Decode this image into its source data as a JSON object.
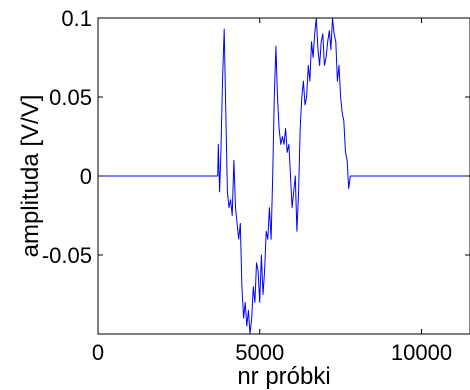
{
  "chart_data": {
    "type": "line",
    "title": "",
    "xlabel": "nr próbki",
    "ylabel": "amplituda [V/V]",
    "xlim": [
      0,
      11500
    ],
    "ylim": [
      -0.1,
      0.1
    ],
    "xticks": [
      0,
      5000,
      10000
    ],
    "xtick_labels": [
      "0",
      "5000",
      "10000"
    ],
    "yticks": [
      0.1,
      0.05,
      0,
      -0.05
    ],
    "ytick_labels": [
      "0.1",
      "0.05",
      "0",
      "-0.05"
    ],
    "grid": false,
    "series": [
      {
        "color": "#0000ff",
        "points": [
          [
            0,
            0
          ],
          [
            3700,
            0
          ],
          [
            3720,
            0.02
          ],
          [
            3760,
            -0.01
          ],
          [
            3800,
            0.015
          ],
          [
            3850,
            0.06
          ],
          [
            3900,
            0.093
          ],
          [
            3950,
            0.04
          ],
          [
            4000,
            -0.01
          ],
          [
            4050,
            -0.02
          ],
          [
            4100,
            -0.015
          ],
          [
            4150,
            -0.025
          ],
          [
            4200,
            0.01
          ],
          [
            4250,
            -0.02
          ],
          [
            4300,
            -0.03
          ],
          [
            4350,
            -0.04
          ],
          [
            4400,
            -0.03
          ],
          [
            4450,
            -0.07
          ],
          [
            4500,
            -0.09
          ],
          [
            4550,
            -0.08
          ],
          [
            4600,
            -0.095
          ],
          [
            4650,
            -0.085
          ],
          [
            4700,
            -0.1
          ],
          [
            4750,
            -0.09
          ],
          [
            4800,
            -0.07
          ],
          [
            4850,
            -0.08
          ],
          [
            4900,
            -0.055
          ],
          [
            4950,
            -0.06
          ],
          [
            5000,
            -0.08
          ],
          [
            5050,
            -0.05
          ],
          [
            5100,
            -0.075
          ],
          [
            5150,
            -0.06
          ],
          [
            5200,
            -0.035
          ],
          [
            5250,
            -0.04
          ],
          [
            5300,
            -0.02
          ],
          [
            5350,
            -0.04
          ],
          [
            5400,
            0.0
          ],
          [
            5450,
            0.05
          ],
          [
            5500,
            0.082
          ],
          [
            5550,
            0.05
          ],
          [
            5600,
            0.03
          ],
          [
            5650,
            0.02
          ],
          [
            5700,
            0.025
          ],
          [
            5750,
            0.02
          ],
          [
            5800,
            0.03
          ],
          [
            5850,
            0.015
          ],
          [
            5900,
            0.02
          ],
          [
            5950,
            0.0
          ],
          [
            6000,
            -0.02
          ],
          [
            6050,
            -0.01
          ],
          [
            6100,
            0.0
          ],
          [
            6150,
            -0.035
          ],
          [
            6200,
            -0.01
          ],
          [
            6250,
            0.03
          ],
          [
            6300,
            0.05
          ],
          [
            6350,
            0.06
          ],
          [
            6400,
            0.045
          ],
          [
            6450,
            0.05
          ],
          [
            6500,
            0.07
          ],
          [
            6550,
            0.06
          ],
          [
            6600,
            0.085
          ],
          [
            6650,
            0.075
          ],
          [
            6700,
            0.09
          ],
          [
            6750,
            0.1
          ],
          [
            6800,
            0.08
          ],
          [
            6850,
            0.07
          ],
          [
            6900,
            0.085
          ],
          [
            6950,
            0.09
          ],
          [
            7000,
            0.07
          ],
          [
            7050,
            0.075
          ],
          [
            7100,
            0.085
          ],
          [
            7150,
            0.092
          ],
          [
            7200,
            0.08
          ],
          [
            7250,
            0.1
          ],
          [
            7300,
            0.09
          ],
          [
            7350,
            0.085
          ],
          [
            7400,
            0.06
          ],
          [
            7450,
            0.07
          ],
          [
            7500,
            0.05
          ],
          [
            7550,
            0.04
          ],
          [
            7600,
            0.035
          ],
          [
            7650,
            0.015
          ],
          [
            7700,
            0.01
          ],
          [
            7750,
            -0.008
          ],
          [
            7800,
            0
          ],
          [
            11500,
            0
          ]
        ]
      }
    ]
  }
}
